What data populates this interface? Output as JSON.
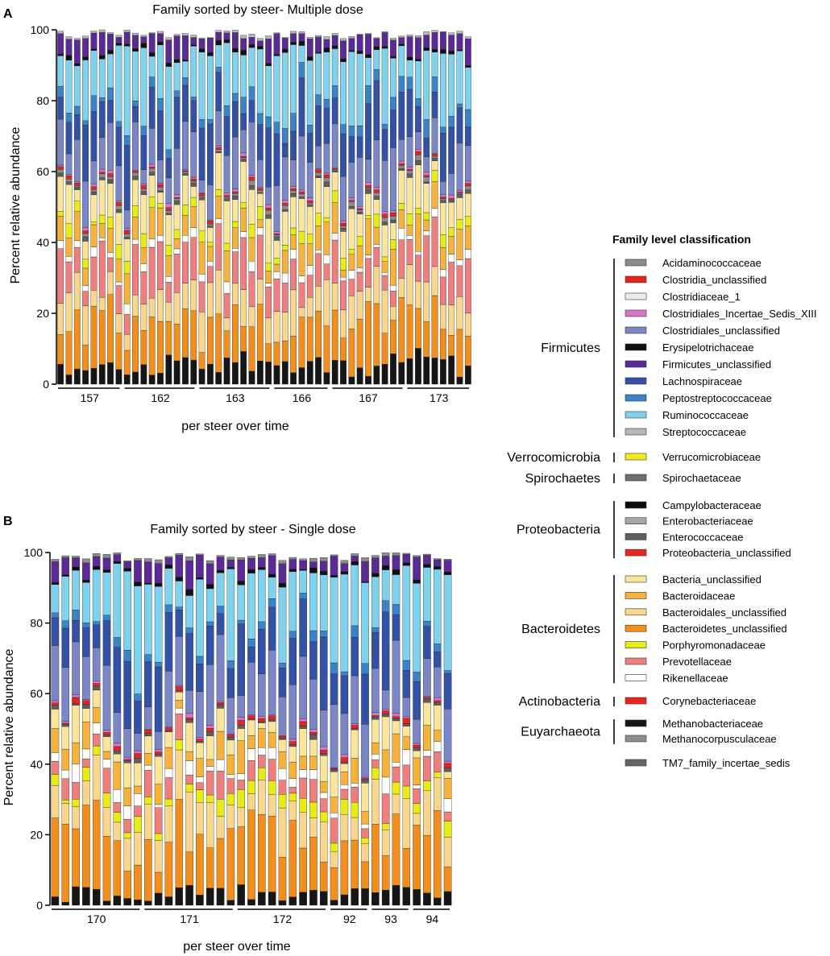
{
  "colors": {
    "Acidaminococcaceae": "#8c8c8c",
    "Clostridia_unclassified": "#e8221f",
    "Clostridiaceae_1": "#ececec",
    "Clostridiales_Incertae_Sedis_XIII": "#d475c8",
    "Clostridiales_unclassified": "#7a86c6",
    "Erysipelotrichaceae": "#111111",
    "Firmicutes_unclassified": "#5b2a96",
    "Lachnospiraceae": "#3352a6",
    "Peptostreptococcaceae": "#3a83c8",
    "Ruminococcaceae": "#7fd2ee",
    "Streptococcaceae": "#b8b8b8",
    "Verrucomicrobiaceae": "#f3ec1c",
    "Spirochaetaceae": "#6e6e6e",
    "Campylobacteraceae": "#0a0a0a",
    "Enterobacteriaceae": "#a6a6a6",
    "Enterococcaceae": "#5e5e5e",
    "Proteobacteria_unclassified": "#e32a22",
    "Bacteria_unclassified": "#fbe59a",
    "Bacteroidaceae": "#f7b23b",
    "Bacteroidales_unclassified": "#f8d68c",
    "Bacteroidetes_unclassified": "#f28e1c",
    "Porphyromonadaceae": "#e6ec14",
    "Prevotellaceae": "#ef7e7e",
    "Rikenellaceae": "#ffffff",
    "Corynebacteriaceae": "#e8251f",
    "Methanobacteriaceae": "#161616",
    "Methanocorpusculaceae": "#8e8e8e",
    "TM7_family_incertae_sedis": "#666666"
  },
  "legend": {
    "title": "Family level classification",
    "groups": [
      {
        "phylum": "Firmicutes",
        "families": [
          "Acidaminococcaceae",
          "Clostridia_unclassified",
          "Clostridiaceae_1",
          "Clostridiales_Incertae_Sedis_XIII",
          "Clostridiales_unclassified",
          "Erysipelotrichaceae",
          "Firmicutes_unclassified",
          "Lachnospiraceae",
          "Peptostreptococcaceae",
          "Ruminococcaceae",
          "Streptococcaceae"
        ]
      },
      {
        "phylum": "Verrocomicrobia",
        "families": [
          "Verrucomicrobiaceae"
        ]
      },
      {
        "phylum": "Spirochaetes",
        "families": [
          "Spirochaetaceae"
        ]
      },
      {
        "phylum": "Proteobacteria",
        "families": [
          "Campylobacteraceae",
          "Enterobacteriaceae",
          "Enterococcaceae",
          "Proteobacteria_unclassified"
        ]
      },
      {
        "phylum": "Bacteroidetes",
        "families": [
          "Bacteria_unclassified",
          "Bacteroidaceae",
          "Bacteroidales_unclassified",
          "Bacteroidetes_unclassified",
          "Porphyromonadaceae",
          "Prevotellaceae",
          "Rikenellaceae"
        ]
      },
      {
        "phylum": "Actinobacteria",
        "families": [
          "Corynebacteriaceae"
        ]
      },
      {
        "phylum": "Euyarchaeota",
        "families": [
          "Methanobacteriaceae",
          "Methanocorpusculaceae"
        ]
      },
      {
        "phylum": "",
        "families": [
          "TM7_family_incertae_sedis"
        ]
      }
    ]
  },
  "chart_data": [
    {
      "type": "bar",
      "stacked": true,
      "panel": "A",
      "title": "Family sorted by steer- Multiple dose",
      "ylabel": "Percent relative abundance",
      "xlabel": "per steer over time",
      "ylim": [
        0,
        100
      ],
      "yticks": [
        0,
        20,
        40,
        60,
        80,
        100
      ],
      "groups": [
        {
          "name": "157",
          "bars": 8
        },
        {
          "name": "162",
          "bars": 9
        },
        {
          "name": "163",
          "bars": 9
        },
        {
          "name": "166",
          "bars": 7
        },
        {
          "name": "167",
          "bars": 9
        },
        {
          "name": "173",
          "bars": 8
        }
      ],
      "stack_order": [
        "Methanobacteriaceae",
        "Bacteroidetes_unclassified",
        "Bacteroidales_unclassified",
        "Prevotellaceae",
        "Rikenellaceae",
        "Bacteroidaceae",
        "Porphyromonadaceae",
        "Bacteria_unclassified",
        "Enterococcaceae",
        "Acidaminococcaceae",
        "Clostridia_unclassified",
        "Clostridiales_Incertae_Sedis_XIII",
        "Clostridiales_unclassified",
        "Lachnospiraceae",
        "Peptostreptococcaceae",
        "Ruminococcaceae",
        "Erysipelotrichaceae",
        "Firmicutes_unclassified",
        "Streptococcaceae"
      ],
      "series_mean_percent": {
        "Methanobacteriaceae": 5,
        "Bacteroidetes_unclassified": 12,
        "Bacteroidales_unclassified": 8,
        "Prevotellaceae": 10,
        "Rikenellaceae": 2,
        "Bacteroidaceae": 6,
        "Porphyromonadaceae": 2.5,
        "Bacteria_unclassified": 7,
        "Enterococcaceae": 0.8,
        "Acidaminococcaceae": 0.8,
        "Clostridia_unclassified": 0.6,
        "Clostridiales_Incertae_Sedis_XIII": 0.6,
        "Clostridiales_unclassified": 10,
        "Lachnospiraceae": 11,
        "Peptostreptococcaceae": 3,
        "Ruminococcaceae": 14,
        "Erysipelotrichaceae": 0.8,
        "Firmicutes_unclassified": 4.5,
        "Streptococcaceae": 0.5
      }
    },
    {
      "type": "bar",
      "stacked": true,
      "panel": "B",
      "title": "Family sorted by steer - Single dose",
      "ylabel": "Percent relative abundance",
      "xlabel": "per steer over time",
      "ylim": [
        0,
        100
      ],
      "yticks": [
        0,
        20,
        40,
        60,
        80,
        100
      ],
      "groups": [
        {
          "name": "170",
          "bars": 9
        },
        {
          "name": "171",
          "bars": 9
        },
        {
          "name": "172",
          "bars": 9
        },
        {
          "name": "92",
          "bars": 4
        },
        {
          "name": "93",
          "bars": 4
        },
        {
          "name": "94",
          "bars": 4
        }
      ],
      "stack_order": [
        "Methanobacteriaceae",
        "Bacteroidetes_unclassified",
        "Bacteroidales_unclassified",
        "Porphyromonadaceae",
        "Prevotellaceae",
        "Rikenellaceae",
        "Bacteroidaceae",
        "Bacteria_unclassified",
        "Enterococcaceae",
        "Clostridia_unclassified",
        "Clostridiales_Incertae_Sedis_XIII",
        "Clostridiales_unclassified",
        "Lachnospiraceae",
        "Peptostreptococcaceae",
        "Ruminococcaceae",
        "Erysipelotrichaceae",
        "Firmicutes_unclassified",
        "Acidaminococcaceae"
      ],
      "series_mean_percent": {
        "Methanobacteriaceae": 3,
        "Bacteroidetes_unclassified": 17,
        "Bacteroidales_unclassified": 9,
        "Porphyromonadaceae": 3,
        "Prevotellaceae": 5,
        "Rikenellaceae": 2.5,
        "Bacteroidaceae": 5,
        "Bacteria_unclassified": 5,
        "Enterococcaceae": 0.8,
        "Clostridia_unclassified": 0.8,
        "Clostridiales_Incertae_Sedis_XIII": 0.6,
        "Clostridiales_unclassified": 12,
        "Lachnospiraceae": 12,
        "Peptostreptococcaceae": 2,
        "Ruminococcaceae": 17,
        "Erysipelotrichaceae": 0.8,
        "Firmicutes_unclassified": 4,
        "Acidaminococcaceae": 0.7
      }
    }
  ]
}
